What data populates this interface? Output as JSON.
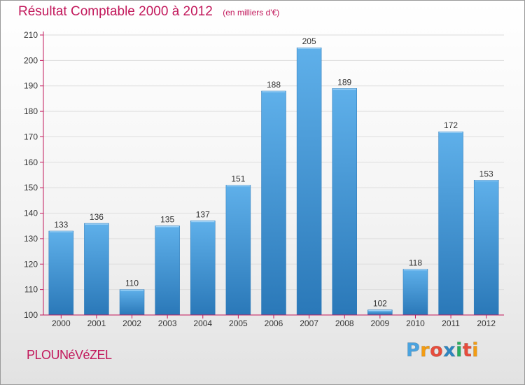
{
  "title": "Résultat Comptable 2000 à 2012",
  "unit_label": "(en milliers d'€)",
  "commune": "PLOUNéVéZEL",
  "logo": {
    "text": "Proxiti",
    "letter_colors": [
      "#4aa3df",
      "#f39c12",
      "#e74c3c",
      "#2e86c1",
      "#27ae60",
      "#e74c3c",
      "#f39c12"
    ]
  },
  "colors": {
    "bar_light": "#5fb0ea",
    "bar_dark": "#2a78b8",
    "axis_tick": "#c2185b",
    "grid": "#dddddd",
    "text": "#333333"
  },
  "chart_data": {
    "type": "bar",
    "title": "Résultat Comptable 2000 à 2012",
    "categories": [
      "2000",
      "2001",
      "2002",
      "2003",
      "2004",
      "2005",
      "2006",
      "2007",
      "2008",
      "2009",
      "2010",
      "2011",
      "2012"
    ],
    "values": [
      133,
      136,
      110,
      135,
      137,
      151,
      188,
      205,
      189,
      102,
      118,
      172,
      153
    ],
    "ylim": [
      100,
      210
    ],
    "yticks": [
      100,
      110,
      120,
      130,
      140,
      150,
      160,
      170,
      180,
      190,
      200,
      210
    ],
    "grid": true,
    "data_labels": true
  }
}
